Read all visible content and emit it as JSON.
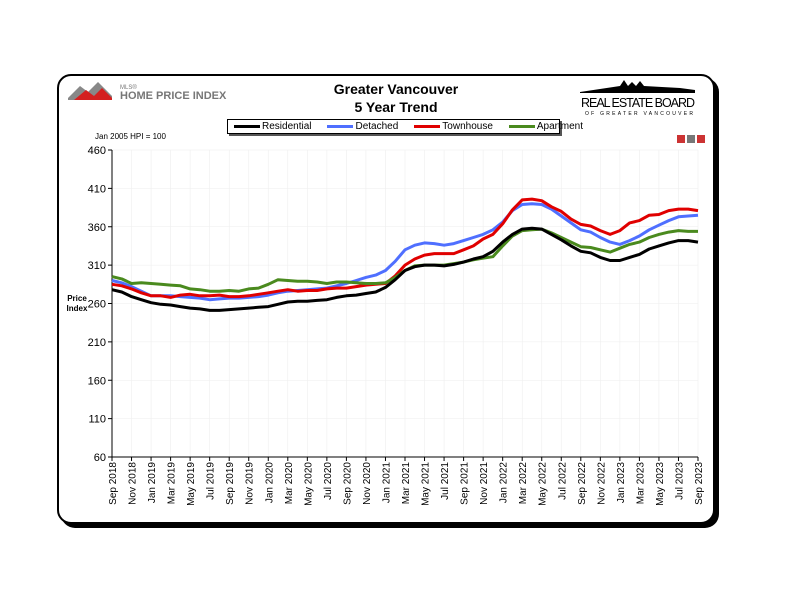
{
  "logos": {
    "left": "MLS® HOME PRICE INDEX",
    "right_line1": "REAL ESTATE BOARD",
    "right_line2": "OF GREATER VANCOUVER"
  },
  "chart_data": {
    "type": "line",
    "title": "Greater Vancouver",
    "subtitle": "5 Year Trend",
    "note": "Jan 2005 HPI = 100",
    "ylabel": "Price Index",
    "xlabel": "",
    "ylim": [
      60,
      460
    ],
    "yticks": [
      60,
      110,
      160,
      210,
      260,
      310,
      360,
      410,
      460
    ],
    "grid": true,
    "legend_position": "top",
    "xtick_labels": [
      "Sep 2018",
      "Nov 2018",
      "Jan 2019",
      "Mar 2019",
      "May 2019",
      "Jul 2019",
      "Sep 2019",
      "Nov 2019",
      "Jan 2020",
      "Mar 2020",
      "May 2020",
      "Jul 2020",
      "Sep 2020",
      "Nov 2020",
      "Jan 2021",
      "Mar 2021",
      "May 2021",
      "Jul 2021",
      "Sep 2021",
      "Nov 2021",
      "Jan 2022",
      "Mar 2022",
      "May 2022",
      "Jul 2022",
      "Sep 2022",
      "Nov 2022",
      "Jan 2023",
      "Mar 2023",
      "May 2023",
      "Jul 2023",
      "Sep 2023"
    ],
    "x_start": "Sep 2018",
    "x_end": "Sep 2023",
    "frequency": "monthly",
    "series": [
      {
        "name": "Residential",
        "color": "#000000",
        "values": [
          278,
          275,
          269,
          265,
          261,
          259,
          258,
          256,
          254,
          253,
          251,
          251,
          252,
          253,
          254,
          255,
          256,
          259,
          262,
          263,
          263,
          264,
          265,
          268,
          270,
          271,
          273,
          275,
          281,
          291,
          303,
          308,
          310,
          310,
          309,
          311,
          314,
          318,
          321,
          328,
          340,
          350,
          357,
          358,
          357,
          350,
          343,
          335,
          328,
          326,
          320,
          316,
          316,
          320,
          324,
          331,
          335,
          339,
          342,
          342,
          340
        ]
      },
      {
        "name": "Detached",
        "color": "#4f6fff",
        "values": [
          290,
          287,
          282,
          276,
          270,
          270,
          270,
          269,
          268,
          267,
          265,
          266,
          267,
          267,
          268,
          269,
          271,
          274,
          276,
          277,
          278,
          279,
          280,
          283,
          286,
          290,
          294,
          297,
          303,
          315,
          330,
          336,
          339,
          338,
          336,
          338,
          342,
          346,
          350,
          356,
          366,
          381,
          389,
          390,
          389,
          383,
          374,
          365,
          356,
          353,
          346,
          340,
          337,
          342,
          348,
          356,
          362,
          368,
          373,
          374,
          375
        ]
      },
      {
        "name": "Townhouse",
        "color": "#e00000",
        "values": [
          285,
          283,
          279,
          274,
          270,
          270,
          268,
          271,
          272,
          270,
          270,
          271,
          269,
          269,
          270,
          272,
          274,
          276,
          278,
          276,
          277,
          277,
          279,
          280,
          280,
          282,
          284,
          285,
          286,
          296,
          310,
          318,
          323,
          325,
          325,
          325,
          330,
          335,
          344,
          350,
          364,
          382,
          395,
          396,
          394,
          386,
          380,
          370,
          363,
          361,
          355,
          350,
          355,
          365,
          368,
          375,
          376,
          381,
          383,
          383,
          381
        ]
      },
      {
        "name": "Apartment",
        "color": "#4a8a1e",
        "values": [
          295,
          292,
          286,
          287,
          286,
          285,
          284,
          283,
          279,
          278,
          276,
          276,
          277,
          276,
          279,
          280,
          285,
          291,
          290,
          289,
          289,
          288,
          286,
          288,
          288,
          287,
          286,
          286,
          287,
          294,
          303,
          309,
          310,
          310,
          310,
          312,
          314,
          317,
          319,
          321,
          335,
          348,
          355,
          356,
          357,
          352,
          346,
          340,
          334,
          333,
          330,
          327,
          332,
          337,
          340,
          346,
          350,
          353,
          355,
          354,
          354
        ]
      }
    ]
  }
}
